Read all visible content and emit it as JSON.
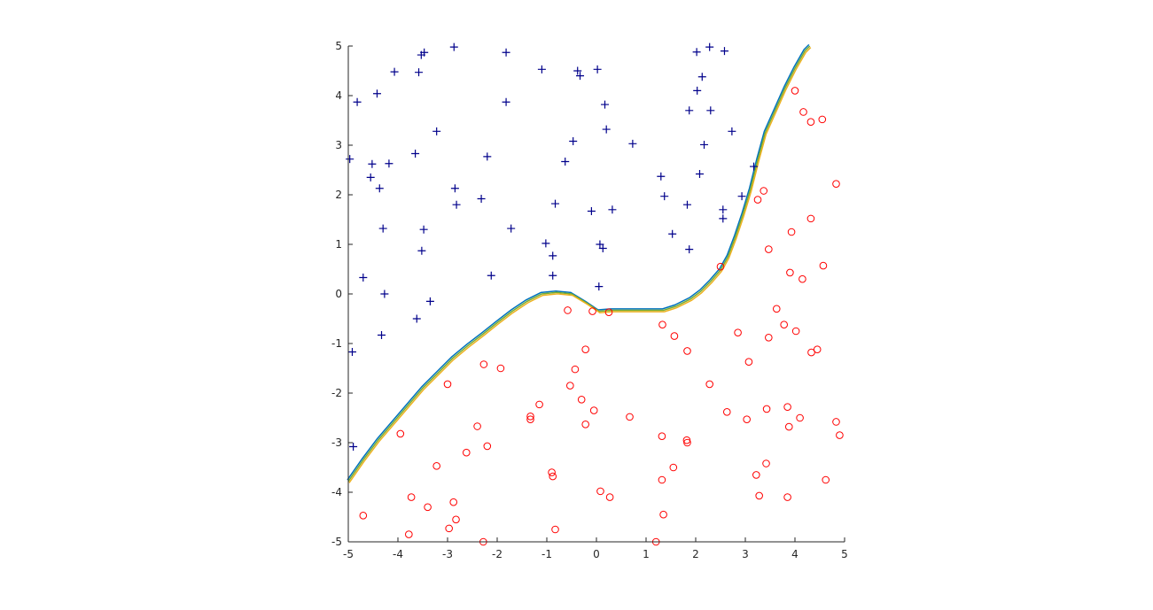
{
  "chart_data": {
    "type": "scatter",
    "title": "",
    "xlabel": "",
    "ylabel": "",
    "xlim": [
      -5,
      5
    ],
    "ylim": [
      -5,
      5
    ],
    "xticks": [
      "-5",
      "-4",
      "-3",
      "-2",
      "-1",
      "0",
      "1",
      "2",
      "3",
      "4",
      "5"
    ],
    "yticks": [
      "-5",
      "-4",
      "-3",
      "-2",
      "-1",
      "0",
      "1",
      "2",
      "3",
      "4",
      "5"
    ],
    "grid": false,
    "legend": "none",
    "series": [
      {
        "marker": "plus",
        "color": "#00008b",
        "points": [
          [
            -4.82,
            3.87
          ],
          [
            -4.42,
            4.04
          ],
          [
            -4.07,
            4.48
          ],
          [
            -3.53,
            4.82
          ],
          [
            -3.47,
            4.87
          ],
          [
            -3.58,
            4.47
          ],
          [
            -2.87,
            4.98
          ],
          [
            -1.82,
            4.87
          ],
          [
            -1.1,
            4.53
          ],
          [
            -0.38,
            4.5
          ],
          [
            -0.33,
            4.4
          ],
          [
            0.02,
            4.53
          ],
          [
            2.02,
            4.88
          ],
          [
            2.28,
            4.98
          ],
          [
            2.58,
            4.9
          ],
          [
            2.13,
            4.38
          ],
          [
            2.03,
            4.1
          ],
          [
            -4.97,
            2.72
          ],
          [
            -4.52,
            2.62
          ],
          [
            -4.18,
            2.63
          ],
          [
            -3.65,
            2.83
          ],
          [
            -3.22,
            3.28
          ],
          [
            -1.82,
            3.87
          ],
          [
            0.17,
            3.82
          ],
          [
            0.2,
            3.32
          ],
          [
            -0.47,
            3.08
          ],
          [
            0.73,
            3.03
          ],
          [
            1.87,
            3.7
          ],
          [
            2.3,
            3.7
          ],
          [
            2.17,
            3.01
          ],
          [
            2.73,
            3.28
          ],
          [
            -4.55,
            2.35
          ],
          [
            -4.37,
            2.13
          ],
          [
            -2.85,
            2.13
          ],
          [
            -2.2,
            2.77
          ],
          [
            -0.63,
            2.67
          ],
          [
            3.17,
            2.57
          ],
          [
            1.3,
            2.37
          ],
          [
            2.08,
            2.42
          ],
          [
            -2.32,
            1.92
          ],
          [
            -0.83,
            1.82
          ],
          [
            -0.1,
            1.67
          ],
          [
            0.32,
            1.7
          ],
          [
            1.37,
            1.97
          ],
          [
            1.83,
            1.8
          ],
          [
            2.93,
            1.97
          ],
          [
            2.55,
            1.7
          ],
          [
            2.55,
            1.52
          ],
          [
            -2.82,
            1.8
          ],
          [
            -4.3,
            1.32
          ],
          [
            -3.48,
            1.3
          ],
          [
            -1.72,
            1.32
          ],
          [
            -3.52,
            0.87
          ],
          [
            -1.02,
            1.02
          ],
          [
            0.07,
            1.0
          ],
          [
            0.13,
            0.92
          ],
          [
            1.53,
            1.21
          ],
          [
            1.87,
            0.9
          ],
          [
            -0.88,
            0.77
          ],
          [
            -4.7,
            0.33
          ],
          [
            -2.12,
            0.37
          ],
          [
            -0.88,
            0.37
          ],
          [
            0.05,
            0.15
          ],
          [
            -4.27,
            0.0
          ],
          [
            -3.35,
            -0.15
          ],
          [
            -3.62,
            -0.5
          ],
          [
            -4.33,
            -0.83
          ],
          [
            -4.92,
            -1.17
          ],
          [
            -4.9,
            -3.08
          ]
        ]
      },
      {
        "marker": "circle",
        "color": "#ff0000",
        "points": [
          [
            4.0,
            4.1
          ],
          [
            4.17,
            3.67
          ],
          [
            4.32,
            3.47
          ],
          [
            4.55,
            3.52
          ],
          [
            4.83,
            2.22
          ],
          [
            3.37,
            2.08
          ],
          [
            3.25,
            1.9
          ],
          [
            4.32,
            1.52
          ],
          [
            3.93,
            1.25
          ],
          [
            3.47,
            0.9
          ],
          [
            2.5,
            0.55
          ],
          [
            4.57,
            0.57
          ],
          [
            3.9,
            0.43
          ],
          [
            4.15,
            0.3
          ],
          [
            -0.58,
            -0.33
          ],
          [
            -0.08,
            -0.35
          ],
          [
            0.25,
            -0.37
          ],
          [
            3.63,
            -0.3
          ],
          [
            1.33,
            -0.62
          ],
          [
            3.78,
            -0.62
          ],
          [
            1.57,
            -0.85
          ],
          [
            2.85,
            -0.78
          ],
          [
            3.47,
            -0.88
          ],
          [
            4.02,
            -0.75
          ],
          [
            -0.22,
            -1.12
          ],
          [
            1.83,
            -1.15
          ],
          [
            4.33,
            -1.18
          ],
          [
            4.45,
            -1.12
          ],
          [
            -2.27,
            -1.42
          ],
          [
            -1.93,
            -1.5
          ],
          [
            -0.43,
            -1.52
          ],
          [
            3.07,
            -1.37
          ],
          [
            -3.0,
            -1.82
          ],
          [
            -0.53,
            -1.85
          ],
          [
            2.28,
            -1.82
          ],
          [
            -0.3,
            -2.13
          ],
          [
            -1.15,
            -2.23
          ],
          [
            -0.05,
            -2.35
          ],
          [
            -1.33,
            -2.47
          ],
          [
            -1.33,
            -2.53
          ],
          [
            0.67,
            -2.48
          ],
          [
            2.63,
            -2.38
          ],
          [
            3.03,
            -2.53
          ],
          [
            3.43,
            -2.32
          ],
          [
            3.85,
            -2.28
          ],
          [
            4.1,
            -2.5
          ],
          [
            4.83,
            -2.58
          ],
          [
            -2.4,
            -2.67
          ],
          [
            -0.22,
            -2.63
          ],
          [
            3.88,
            -2.68
          ],
          [
            4.9,
            -2.85
          ],
          [
            -3.95,
            -2.82
          ],
          [
            -2.2,
            -3.07
          ],
          [
            -2.62,
            -3.2
          ],
          [
            1.32,
            -2.87
          ],
          [
            1.82,
            -2.95
          ],
          [
            1.83,
            -3.0
          ],
          [
            -3.22,
            -3.47
          ],
          [
            -0.9,
            -3.6
          ],
          [
            -0.88,
            -3.68
          ],
          [
            1.55,
            -3.5
          ],
          [
            3.42,
            -3.42
          ],
          [
            1.32,
            -3.75
          ],
          [
            3.22,
            -3.65
          ],
          [
            4.62,
            -3.75
          ],
          [
            -3.73,
            -4.1
          ],
          [
            -2.88,
            -4.2
          ],
          [
            0.08,
            -3.98
          ],
          [
            0.27,
            -4.1
          ],
          [
            3.28,
            -4.07
          ],
          [
            3.85,
            -4.1
          ],
          [
            -4.7,
            -4.47
          ],
          [
            -3.4,
            -4.3
          ],
          [
            -2.83,
            -4.55
          ],
          [
            1.35,
            -4.45
          ],
          [
            -2.97,
            -4.73
          ],
          [
            -0.83,
            -4.75
          ],
          [
            -3.78,
            -4.85
          ],
          [
            -2.28,
            -5.0
          ],
          [
            1.2,
            -5.0
          ]
        ]
      }
    ],
    "boundary": {
      "colors": [
        "#0072bd",
        "#77ac30",
        "#edb120"
      ],
      "points": [
        [
          -5.0,
          -3.78
        ],
        [
          -4.7,
          -3.35
        ],
        [
          -4.4,
          -2.95
        ],
        [
          -4.1,
          -2.6
        ],
        [
          -3.8,
          -2.25
        ],
        [
          -3.5,
          -1.9
        ],
        [
          -3.2,
          -1.6
        ],
        [
          -2.9,
          -1.3
        ],
        [
          -2.6,
          -1.05
        ],
        [
          -2.3,
          -0.82
        ],
        [
          -2.0,
          -0.58
        ],
        [
          -1.7,
          -0.35
        ],
        [
          -1.4,
          -0.15
        ],
        [
          -1.1,
          0.0
        ],
        [
          -0.8,
          0.03
        ],
        [
          -0.5,
          0.0
        ],
        [
          -0.2,
          -0.18
        ],
        [
          0.05,
          -0.35
        ],
        [
          0.3,
          -0.33
        ],
        [
          0.7,
          -0.33
        ],
        [
          1.05,
          -0.33
        ],
        [
          1.35,
          -0.33
        ],
        [
          1.6,
          -0.25
        ],
        [
          1.9,
          -0.1
        ],
        [
          2.1,
          0.05
        ],
        [
          2.3,
          0.25
        ],
        [
          2.5,
          0.48
        ],
        [
          2.65,
          0.75
        ],
        [
          2.8,
          1.15
        ],
        [
          2.95,
          1.6
        ],
        [
          3.1,
          2.1
        ],
        [
          3.25,
          2.7
        ],
        [
          3.4,
          3.25
        ],
        [
          3.6,
          3.7
        ],
        [
          3.8,
          4.15
        ],
        [
          4.0,
          4.55
        ],
        [
          4.2,
          4.9
        ],
        [
          4.3,
          5.0
        ]
      ]
    }
  }
}
